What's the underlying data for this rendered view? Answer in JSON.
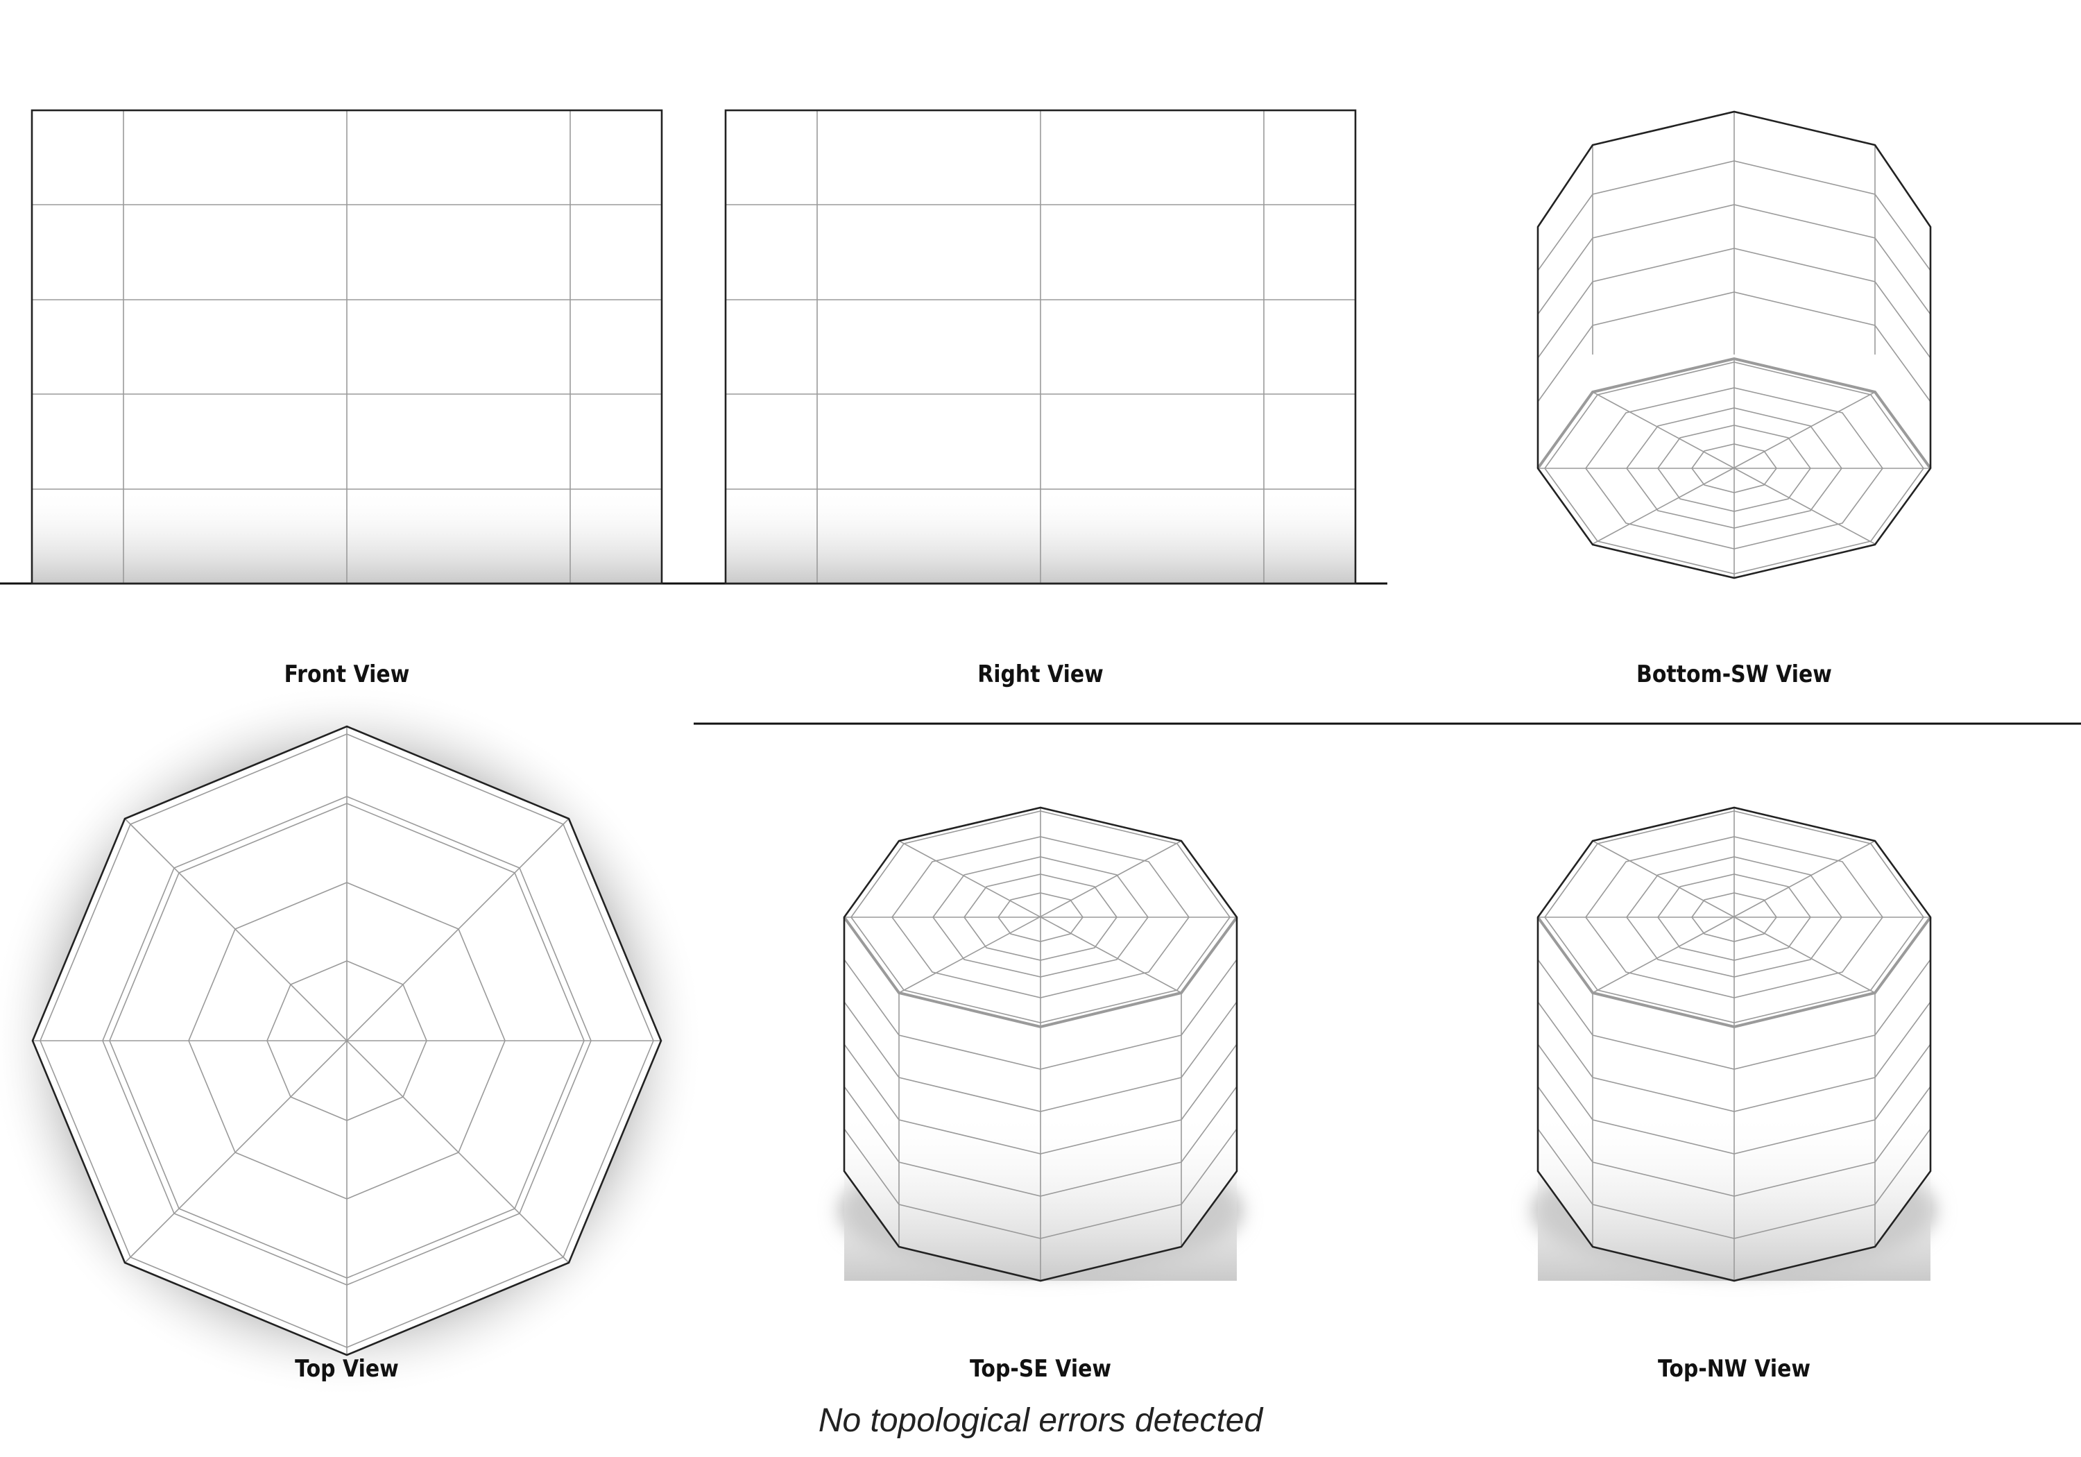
{
  "views": {
    "front": "Front View",
    "right": "Right View",
    "bottom_sw": "Bottom-SW View",
    "top": "Top View",
    "top_se": "Top-SE View",
    "top_nw": "Top-NW View"
  },
  "status": "No topological errors detected",
  "colors": {
    "outline": "#222222",
    "wire": "#9a9a9a",
    "shadow": "#b8b8b8"
  }
}
